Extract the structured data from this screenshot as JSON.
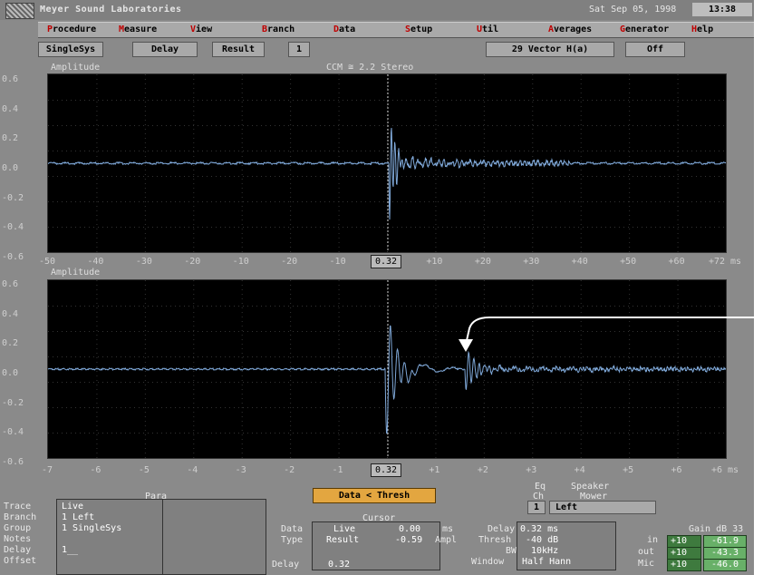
{
  "app": {
    "title": "Meyer Sound Laboratories",
    "datetime": "Sat Sep 05, 1998",
    "clock": "13:38"
  },
  "menu": [
    "Procedure",
    "Measure",
    "View",
    "Branch",
    "Data",
    "Setup",
    "Util",
    "Averages",
    "Generator",
    "Help"
  ],
  "toolbar": {
    "mode": "SingleSys",
    "view": "Delay",
    "result": "Result",
    "index": "1",
    "generator_label": "29 Vector H(a)",
    "generator_state": "Off"
  },
  "plot1": {
    "ylabel": "Amplitude",
    "title": "CCM ≅ 2.2 Stereo",
    "yticks": [
      "0.6",
      "0.4",
      "0.2",
      "0.0",
      "-0.2",
      "-0.4",
      "-0.6"
    ],
    "xticks": [
      "-50",
      "-40",
      "-30",
      "-20",
      "-10",
      "-20",
      "-10",
      "0.32",
      "+10",
      "+20",
      "+30",
      "+40",
      "+50",
      "+60",
      "+72 ms"
    ],
    "cursor_value": "0.32"
  },
  "plot2": {
    "ylabel": "Amplitude",
    "yticks": [
      "0.6",
      "0.4",
      "0.2",
      "0.0",
      "-0.2",
      "-0.4",
      "-0.6"
    ],
    "xticks": [
      "-7",
      "-6",
      "-5",
      "-4",
      "-3",
      "-2",
      "-1",
      "0.32",
      "+1",
      "+2",
      "+3",
      "+4",
      "+5",
      "+6",
      "+6 ms"
    ],
    "cursor_value": "0.32"
  },
  "status": "Data < Thresh",
  "params": {
    "header": "Para",
    "rows": [
      {
        "label": "Trace",
        "value": "Live"
      },
      {
        "label": "Branch",
        "value": "1 Left"
      },
      {
        "label": "Group",
        "value": "1 SingleSys"
      },
      {
        "label": "Notes",
        "value": ""
      },
      {
        "label": "Delay",
        "value": "1__"
      },
      {
        "label": "Offset",
        "value": ""
      }
    ]
  },
  "cursor": {
    "header": "Cursor",
    "data_label": "Data",
    "data_value": "Live",
    "data_num": "0.00",
    "data_unit": "ms",
    "type_label": "Type",
    "type_value": "Result",
    "type_num": "-0.59",
    "type_unit": "Ampl",
    "delay_label": "Delay",
    "delay_value": "0.32"
  },
  "settings": {
    "delay_label": "Delay",
    "delay_value": "0.32 ms",
    "thresh_label": "Thresh",
    "thresh_value": "-40 dB",
    "bw_label": "BW",
    "bw_value": "10kHz",
    "window_label": "Window",
    "window_value": "Half Hann"
  },
  "channel": {
    "label_top": "Eq",
    "label_bottom": "Ch",
    "unit": "Speaker",
    "unit2": "Mower",
    "num": "1",
    "name": "Left"
  },
  "gain": {
    "header": "Gain dB 33",
    "rows": [
      {
        "label": "in",
        "set": "+10",
        "value": "-61.9"
      },
      {
        "label": "out",
        "set": "+10",
        "value": "-43.3"
      },
      {
        "label": "Mic",
        "set": "+10",
        "value": "-46.0"
      }
    ]
  },
  "colors": {
    "trace": "#7fa8d8",
    "status": "#e3a640",
    "accent_red": "#c00000"
  }
}
